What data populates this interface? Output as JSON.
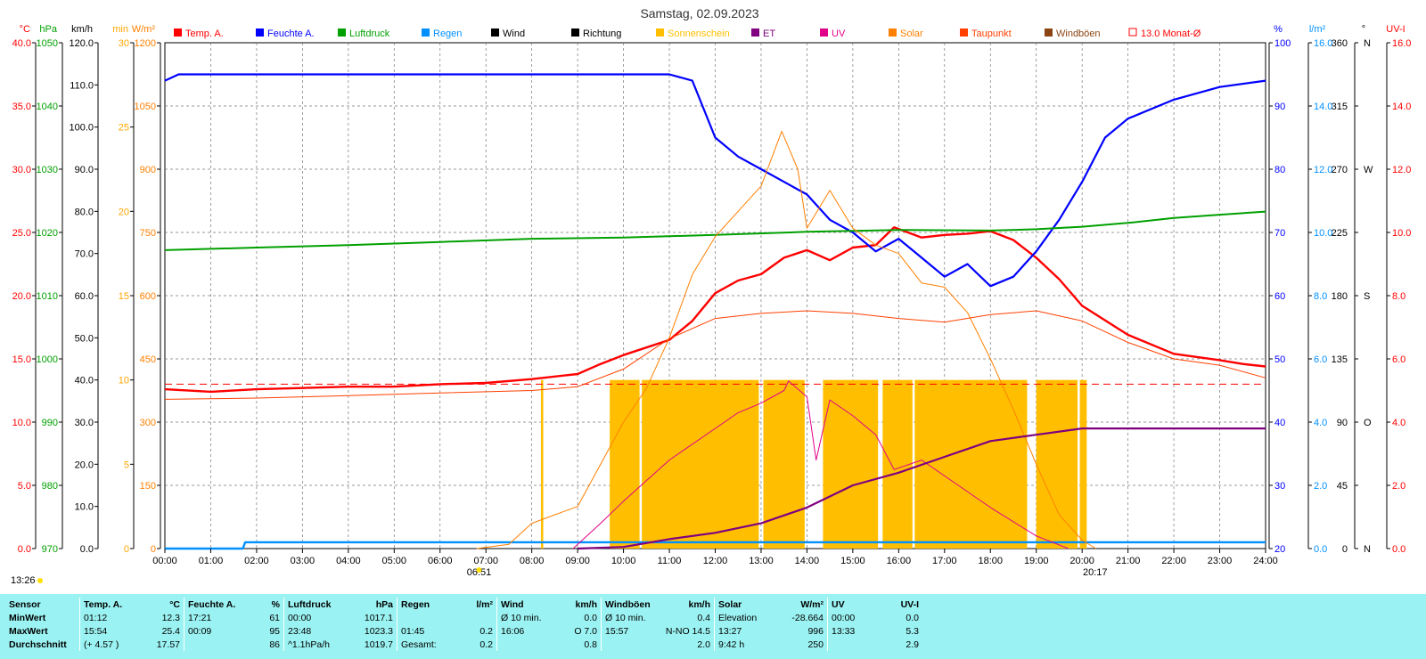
{
  "chart_data": {
    "type": "line",
    "title": "Samstag, 02.09.2023",
    "x_ticks": [
      "00:00",
      "01:00",
      "02:00",
      "03:00",
      "04:00",
      "05:00",
      "06:00",
      "07:00",
      "08:00",
      "09:00",
      "10:00",
      "11:00",
      "12:00",
      "13:00",
      "14:00",
      "15:00",
      "16:00",
      "17:00",
      "18:00",
      "19:00",
      "20:00",
      "21:00",
      "22:00",
      "23:00",
      "24:00"
    ],
    "sunrise": "06:51",
    "sunset": "20:17",
    "day_length": "13:26",
    "left_axes": [
      {
        "unit": "°C",
        "color": "#ff0000",
        "ticks": [
          "0.0",
          "5.0",
          "10.0",
          "15.0",
          "20.0",
          "25.0",
          "30.0",
          "35.0",
          "40.0"
        ]
      },
      {
        "unit": "hPa",
        "color": "#00a000",
        "ticks": [
          "970",
          "980",
          "990",
          "1000",
          "1010",
          "1020",
          "1030",
          "1040",
          "1050"
        ]
      },
      {
        "unit": "km/h",
        "color": "#000000",
        "ticks": [
          "0.0",
          "10.0",
          "20.0",
          "30.0",
          "40.0",
          "50.0",
          "60.0",
          "70.0",
          "80.0",
          "90.0",
          "100.0",
          "110.0",
          "120.0"
        ]
      },
      {
        "unit": "min",
        "color": "#ffa500",
        "ticks": [
          "0",
          "5",
          "10",
          "15",
          "20",
          "25",
          "30"
        ]
      },
      {
        "unit": "W/m²",
        "color": "#ff8000",
        "ticks": [
          "0",
          "150",
          "300",
          "450",
          "600",
          "750",
          "900",
          "1050",
          "1200"
        ]
      }
    ],
    "right_axes": [
      {
        "unit": "%",
        "color": "#0000ff",
        "ticks": [
          "20",
          "30",
          "40",
          "50",
          "60",
          "70",
          "80",
          "90",
          "100"
        ]
      },
      {
        "unit": "l/m²",
        "color": "#0090ff",
        "ticks": [
          "0.0",
          "2.0",
          "4.0",
          "6.0",
          "8.0",
          "10.0",
          "12.0",
          "14.0",
          "16.0"
        ]
      },
      {
        "unit": "°",
        "color": "#000000",
        "ticks": [
          "0",
          "45",
          "90",
          "135",
          "180",
          "225",
          "270",
          "315",
          "360"
        ]
      },
      {
        "unit": "",
        "color": "#000000",
        "ticks": [
          "N",
          "",
          "O",
          "",
          "S",
          "",
          "W",
          "",
          "N"
        ]
      },
      {
        "unit": "UV-I",
        "color": "#ff0000",
        "ticks": [
          "0.0",
          "2.0",
          "4.0",
          "6.0",
          "8.0",
          "10.0",
          "12.0",
          "14.0",
          "16.0"
        ]
      }
    ],
    "legend": [
      {
        "label": "Temp. A.",
        "color": "#ff0000"
      },
      {
        "label": "Feuchte A.",
        "color": "#0000ff"
      },
      {
        "label": "Luftdruck",
        "color": "#00a000"
      },
      {
        "label": "Regen",
        "color": "#0090ff"
      },
      {
        "label": "Wind",
        "color": "#000000"
      },
      {
        "label": "Richtung",
        "color": "#000000"
      },
      {
        "label": "Sonnenschein",
        "color": "#ffbf00"
      },
      {
        "label": "ET",
        "color": "#800080"
      },
      {
        "label": "UV",
        "color": "#e0008a"
      },
      {
        "label": "Solar",
        "color": "#ff8000"
      },
      {
        "label": "Taupunkt",
        "color": "#ff4000"
      },
      {
        "label": "Windböen",
        "color": "#8b4513"
      },
      {
        "label": "13.0 Monat-Ø",
        "color": "#ff0000"
      }
    ],
    "month_avg_temp": 13.0,
    "series": [
      {
        "name": "Temp. A.",
        "unit": "°C",
        "color": "#ff0000",
        "points": [
          [
            0,
            12.6
          ],
          [
            1,
            12.4
          ],
          [
            2,
            12.6
          ],
          [
            3,
            12.7
          ],
          [
            4,
            12.8
          ],
          [
            5,
            12.8
          ],
          [
            6,
            13.0
          ],
          [
            7,
            13.1
          ],
          [
            8,
            13.4
          ],
          [
            9,
            13.8
          ],
          [
            9.5,
            14.6
          ],
          [
            10,
            15.3
          ],
          [
            11,
            16.5
          ],
          [
            11.5,
            18.0
          ],
          [
            12,
            20.2
          ],
          [
            12.5,
            21.2
          ],
          [
            13,
            21.7
          ],
          [
            13.5,
            23.0
          ],
          [
            14,
            23.6
          ],
          [
            14.5,
            22.8
          ],
          [
            15,
            23.8
          ],
          [
            15.5,
            24.0
          ],
          [
            15.9,
            25.4
          ],
          [
            16.5,
            24.6
          ],
          [
            17,
            24.8
          ],
          [
            17.5,
            24.9
          ],
          [
            18,
            25.1
          ],
          [
            18.5,
            24.4
          ],
          [
            19,
            23.0
          ],
          [
            19.5,
            21.3
          ],
          [
            20,
            19.2
          ],
          [
            21,
            16.9
          ],
          [
            22,
            15.4
          ],
          [
            23,
            14.9
          ],
          [
            23.5,
            14.6
          ],
          [
            24,
            14.4
          ]
        ]
      },
      {
        "name": "Feuchte A.",
        "unit": "%",
        "color": "#0000ff",
        "points": [
          [
            0,
            94
          ],
          [
            0.3,
            95
          ],
          [
            1,
            95
          ],
          [
            5,
            95
          ],
          [
            10,
            95
          ],
          [
            11,
            95
          ],
          [
            11.5,
            94
          ],
          [
            12,
            85
          ],
          [
            12.5,
            82
          ],
          [
            13,
            80
          ],
          [
            13.5,
            78
          ],
          [
            14,
            76
          ],
          [
            14.5,
            72
          ],
          [
            15,
            70
          ],
          [
            15.5,
            67
          ],
          [
            16,
            69
          ],
          [
            16.5,
            66
          ],
          [
            17,
            63
          ],
          [
            17.5,
            65
          ],
          [
            18,
            61.5
          ],
          [
            18.5,
            63
          ],
          [
            19,
            67
          ],
          [
            19.5,
            72
          ],
          [
            20,
            78
          ],
          [
            20.5,
            85
          ],
          [
            21,
            88
          ],
          [
            22,
            91
          ],
          [
            23,
            93
          ],
          [
            24,
            94
          ]
        ]
      },
      {
        "name": "Luftdruck",
        "unit": "hPa",
        "color": "#00a000",
        "points": [
          [
            0,
            1017.2
          ],
          [
            2,
            1017.6
          ],
          [
            4,
            1018.0
          ],
          [
            6,
            1018.5
          ],
          [
            8,
            1019.0
          ],
          [
            10,
            1019.2
          ],
          [
            12,
            1019.6
          ],
          [
            14,
            1020.1
          ],
          [
            16,
            1020.4
          ],
          [
            18,
            1020.3
          ],
          [
            19,
            1020.5
          ],
          [
            20,
            1020.9
          ],
          [
            21,
            1021.5
          ],
          [
            22,
            1022.3
          ],
          [
            23,
            1022.8
          ],
          [
            24,
            1023.3
          ]
        ]
      },
      {
        "name": "Regen",
        "unit": "l/m²",
        "color": "#0090ff",
        "points": [
          [
            0,
            0
          ],
          [
            1.7,
            0
          ],
          [
            1.75,
            0.2
          ],
          [
            24,
            0.2
          ]
        ]
      },
      {
        "name": "Solar",
        "unit": "W/m²",
        "color": "#ff8000",
        "points": [
          [
            6.8,
            0
          ],
          [
            7.5,
            10
          ],
          [
            8,
            60
          ],
          [
            8.5,
            80
          ],
          [
            9,
            100
          ],
          [
            9.5,
            200
          ],
          [
            10,
            300
          ],
          [
            10.5,
            380
          ],
          [
            11,
            500
          ],
          [
            11.5,
            650
          ],
          [
            12,
            740
          ],
          [
            12.5,
            800
          ],
          [
            13,
            860
          ],
          [
            13.45,
            990
          ],
          [
            13.8,
            900
          ],
          [
            14,
            760
          ],
          [
            14.5,
            850
          ],
          [
            15,
            760
          ],
          [
            15.5,
            720
          ],
          [
            16,
            700
          ],
          [
            16.5,
            630
          ],
          [
            17,
            620
          ],
          [
            17.5,
            560
          ],
          [
            18,
            450
          ],
          [
            18.5,
            330
          ],
          [
            19,
            200
          ],
          [
            19.5,
            80
          ],
          [
            20,
            20
          ],
          [
            20.3,
            0
          ]
        ]
      },
      {
        "name": "Taupunkt",
        "unit": "°C",
        "color": "#ff4000",
        "points": [
          [
            0,
            11.8
          ],
          [
            2,
            11.9
          ],
          [
            4,
            12.1
          ],
          [
            6,
            12.3
          ],
          [
            8,
            12.5
          ],
          [
            9,
            12.8
          ],
          [
            10,
            14.2
          ],
          [
            11,
            16.6
          ],
          [
            12,
            18.2
          ],
          [
            13,
            18.6
          ],
          [
            14,
            18.8
          ],
          [
            15,
            18.6
          ],
          [
            16,
            18.2
          ],
          [
            17,
            17.9
          ],
          [
            18,
            18.5
          ],
          [
            19,
            18.8
          ],
          [
            20,
            18.0
          ],
          [
            21,
            16.3
          ],
          [
            22,
            15.0
          ],
          [
            23,
            14.5
          ],
          [
            24,
            13.5
          ]
        ]
      },
      {
        "name": "UV",
        "unit": "UV-I",
        "color": "#e0008a",
        "points": [
          [
            8.9,
            0
          ],
          [
            9.5,
            0.8
          ],
          [
            10,
            1.5
          ],
          [
            11,
            2.8
          ],
          [
            12,
            3.8
          ],
          [
            12.5,
            4.3
          ],
          [
            13,
            4.6
          ],
          [
            13.5,
            5.0
          ],
          [
            13.6,
            5.3
          ],
          [
            14,
            4.8
          ],
          [
            14.2,
            2.8
          ],
          [
            14.5,
            4.7
          ],
          [
            15,
            4.2
          ],
          [
            15.5,
            3.6
          ],
          [
            15.9,
            2.5
          ],
          [
            16.5,
            2.8
          ],
          [
            17,
            2.3
          ],
          [
            18,
            1.3
          ],
          [
            19,
            0.4
          ],
          [
            19.7,
            0
          ]
        ]
      },
      {
        "name": "ET",
        "unit": "l/m²",
        "color": "#800080",
        "points": [
          [
            9,
            0
          ],
          [
            10,
            0.05
          ],
          [
            11,
            0.3
          ],
          [
            12,
            0.5
          ],
          [
            13,
            0.8
          ],
          [
            14,
            1.3
          ],
          [
            15,
            2.0
          ],
          [
            16,
            2.4
          ],
          [
            17,
            2.9
          ],
          [
            18,
            3.4
          ],
          [
            19,
            3.6
          ],
          [
            20,
            3.8
          ],
          [
            24,
            3.8
          ]
        ]
      },
      {
        "name": "Sonnenschein",
        "unit": "min",
        "color": "#ffbf00",
        "blocks": [
          [
            8.2,
            8.25
          ],
          [
            9.7,
            10.35
          ],
          [
            10.4,
            12.95
          ],
          [
            13.05,
            13.95
          ],
          [
            14.35,
            15.55
          ],
          [
            15.65,
            16.3
          ],
          [
            16.35,
            18.8
          ],
          [
            19.0,
            19.9
          ],
          [
            19.95,
            20.1
          ]
        ],
        "level": 10
      }
    ]
  },
  "stats": {
    "headers": {
      "sensor": "Sensor",
      "temp": "Temp. A.",
      "temp_unit": "°C",
      "hum": "Feuchte A.",
      "hum_unit": "%",
      "press": "Luftdruck",
      "press_unit": "hPa",
      "rain": "Regen",
      "rain_unit": "l/m²",
      "wind": "Wind",
      "wind_unit": "km/h",
      "gust": "Windböen",
      "gust_unit": "km/h",
      "solar": "Solar",
      "solar_unit": "W/m²",
      "uv": "UV",
      "uv_unit": "UV-I"
    },
    "rows": [
      {
        "label": "MinWert",
        "temp_t": "01:12",
        "temp_v": "12.3",
        "hum_t": "17:21",
        "hum_v": "61",
        "press_t": "00:00",
        "press_v": "1017.1",
        "rain_t": "",
        "rain_v": "",
        "wind_t": "Ø 10 min.",
        "wind_v": "0.0",
        "gust_t": "Ø 10 min.",
        "gust_v": "0.4",
        "solar_t": "Elevation",
        "solar_v": "-28.664",
        "uv_t": "00:00",
        "uv_v": "0.0"
      },
      {
        "label": "MaxWert",
        "temp_t": "15:54",
        "temp_v": "25.4",
        "hum_t": "00:09",
        "hum_v": "95",
        "press_t": "23:48",
        "press_v": "1023.3",
        "rain_t": "01:45",
        "rain_v": "0.2",
        "wind_t": "16:06",
        "wind_v": "O 7.0",
        "gust_t": "15:57",
        "gust_v": "N-NO 14.5",
        "solar_t": "13:27",
        "solar_v": "996",
        "uv_t": "13:33",
        "uv_v": "5.3"
      },
      {
        "label": "Durchschnitt",
        "temp_t": "(+ 4.57 )",
        "temp_v": "17.57",
        "hum_t": "",
        "hum_v": "86",
        "press_t": "^1.1hPa/h",
        "press_v": "1019.7",
        "rain_t": "Gesamt:",
        "rain_v": "0.2",
        "wind_t": "",
        "wind_v": "0.8",
        "gust_t": "",
        "gust_v": "2.0",
        "solar_t": "9:42 h",
        "solar_v": "250",
        "uv_t": "",
        "uv_v": "2.9"
      }
    ]
  }
}
